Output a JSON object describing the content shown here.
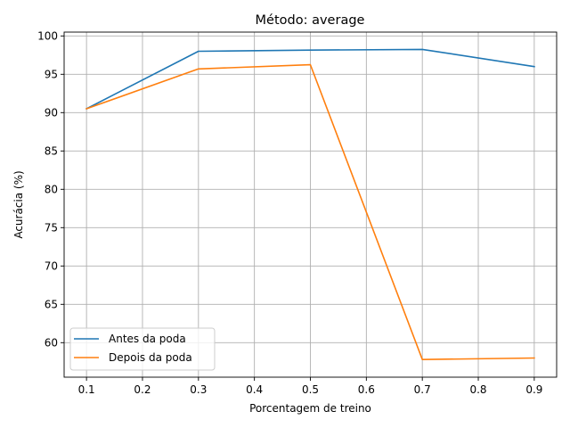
{
  "chart_data": {
    "type": "line",
    "title": "Método: average",
    "xlabel": "Porcentagem de treino",
    "ylabel": "Acurácia (%)",
    "x": [
      0.1,
      0.3,
      0.5,
      0.7,
      0.9
    ],
    "xticks": [
      "0.1",
      "0.2",
      "0.3",
      "0.4",
      "0.5",
      "0.6",
      "0.7",
      "0.8",
      "0.9"
    ],
    "xtick_values": [
      0.1,
      0.2,
      0.3,
      0.4,
      0.5,
      0.6,
      0.7,
      0.8,
      0.9
    ],
    "yticks": [
      "60",
      "65",
      "70",
      "75",
      "80",
      "85",
      "90",
      "95",
      "100"
    ],
    "ytick_values": [
      60,
      65,
      70,
      75,
      80,
      85,
      90,
      95,
      100
    ],
    "xlim": [
      0.06,
      0.94
    ],
    "ylim": [
      55.5,
      100.5
    ],
    "grid": true,
    "legend_position": "lower-left",
    "series": [
      {
        "name": "Antes da poda",
        "color": "#1f77b4",
        "values": [
          90.5,
          98.0,
          98.15,
          98.25,
          96.0
        ]
      },
      {
        "name": "Depois da poda",
        "color": "#ff7f0e",
        "values": [
          90.5,
          95.7,
          96.25,
          57.8,
          58.0
        ]
      }
    ]
  }
}
